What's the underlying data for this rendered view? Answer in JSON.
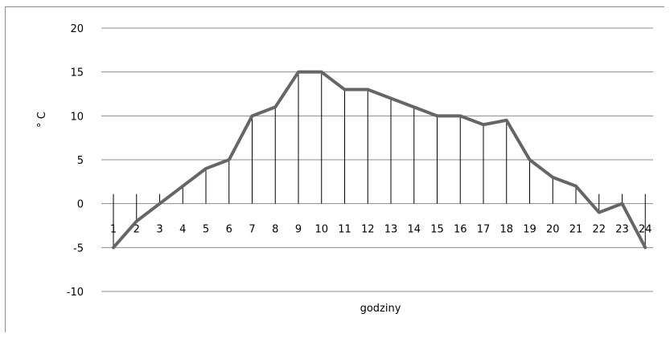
{
  "chart_data": {
    "type": "line",
    "xlabel": "godziny",
    "ylabel": "° C",
    "ylim": [
      -10,
      20
    ],
    "yticks": [
      -10,
      -5,
      0,
      5,
      10,
      15,
      20
    ],
    "categories": [
      "1",
      "2",
      "3",
      "4",
      "5",
      "6",
      "7",
      "8",
      "9",
      "10",
      "11",
      "12",
      "13",
      "14",
      "15",
      "16",
      "17",
      "18",
      "19",
      "20",
      "21",
      "22",
      "23",
      "24"
    ],
    "series": [
      {
        "values": [
          -5,
          -2,
          0,
          2,
          4,
          5,
          10,
          11,
          15,
          15,
          13,
          13,
          12,
          11,
          10,
          10,
          9,
          9.5,
          5,
          3,
          2,
          -1,
          0,
          -5
        ]
      }
    ],
    "grid": true,
    "drop_lines": true,
    "colors": {
      "line": "#666666",
      "grid": "#8c8c8c",
      "drop": "#000000"
    }
  }
}
